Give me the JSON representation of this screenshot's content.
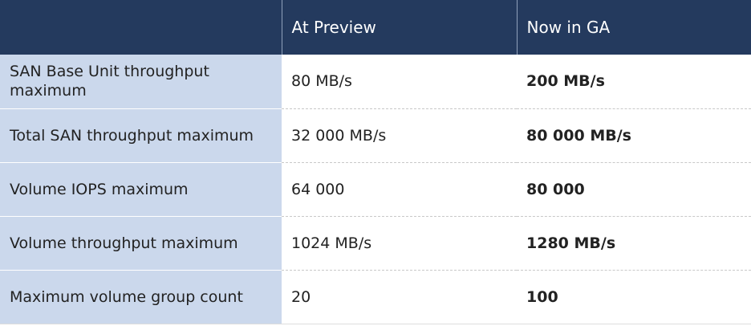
{
  "table": {
    "header": [
      "At Preview",
      "Now in GA"
    ],
    "rows": [
      [
        "SAN Base Unit throughput maximum",
        "80 MB/s",
        "200 MB/s"
      ],
      [
        "Total SAN throughput maximum",
        "32 000 MB/s",
        "80 000 MB/s"
      ],
      [
        "Volume IOPS maximum",
        "64 000",
        "80 000"
      ],
      [
        "Volume throughput maximum",
        "1024 MB/s",
        "1280 MB/s"
      ],
      [
        "Maximum volume group count",
        "20",
        "100"
      ]
    ]
  }
}
